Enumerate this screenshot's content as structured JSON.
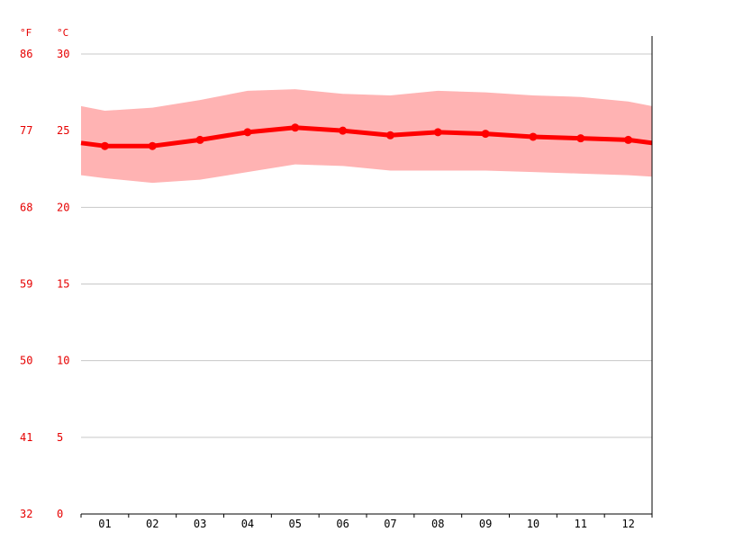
{
  "chart_data": {
    "type": "line",
    "categories": [
      "01",
      "02",
      "03",
      "04",
      "05",
      "06",
      "07",
      "08",
      "09",
      "10",
      "11",
      "12"
    ],
    "y_unit_left": "°F",
    "y_unit_right": "°C",
    "yticks_c": [
      "30",
      "25",
      "20",
      "15",
      "10",
      "5",
      "0"
    ],
    "yticks_f": [
      "86",
      "77",
      "68",
      "59",
      "50",
      "41",
      "32"
    ],
    "ylim": [
      0,
      30
    ],
    "grid": true,
    "series": [
      {
        "type": "line",
        "values": [
          24.0,
          24.0,
          24.4,
          24.9,
          25.2,
          25.0,
          24.7,
          24.9,
          24.8,
          24.6,
          24.5,
          24.4
        ],
        "edge_start": 24.2,
        "edge_end": 24.2
      },
      {
        "type": "band",
        "upper": [
          26.3,
          26.5,
          27.0,
          27.6,
          27.7,
          27.4,
          27.3,
          27.6,
          27.5,
          27.3,
          27.2,
          26.9
        ],
        "lower": [
          21.9,
          21.6,
          21.8,
          22.3,
          22.8,
          22.7,
          22.4,
          22.4,
          22.4,
          22.3,
          22.2,
          22.1
        ],
        "upper_start": 26.6,
        "upper_end": 26.6,
        "lower_start": 22.1,
        "lower_end": 22.0
      }
    ],
    "colors": {
      "line": "#ff0000",
      "band": "#ffb3b3",
      "tick_text_y": "#e60000",
      "tick_text_x": "#000000",
      "grid": "#c8c8c8",
      "axis": "#000000"
    }
  }
}
